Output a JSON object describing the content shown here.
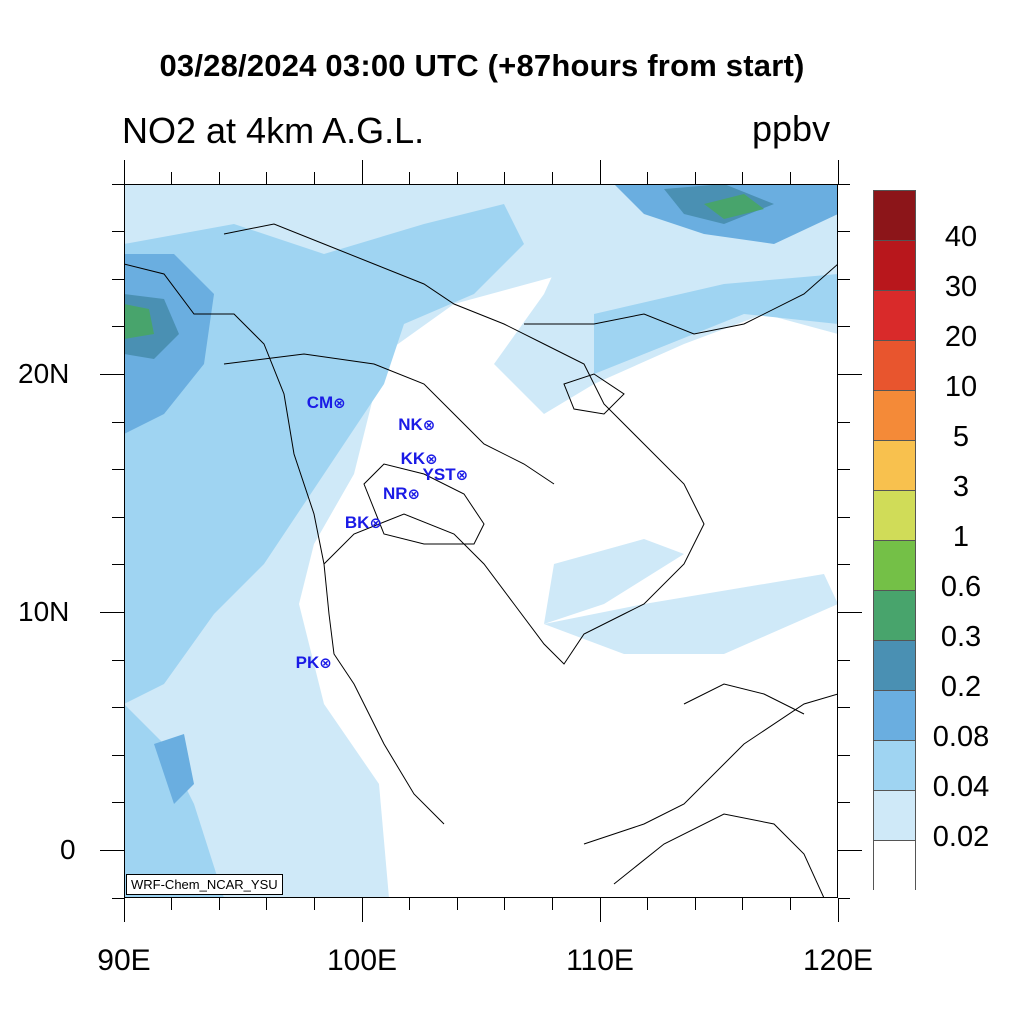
{
  "title": "03/28/2024 03:00 UTC (+87hours from start)",
  "subtitle": "NO2 at 4km A.G.L.",
  "units": "ppbv",
  "credit": "WRF-Chem_NCAR_YSU",
  "axes": {
    "x_labels": [
      "90E",
      "100E",
      "110E",
      "120E"
    ],
    "y_labels": [
      "20N",
      "10N",
      "0"
    ],
    "lon_range": [
      90,
      120
    ],
    "lat_range": [
      -2,
      28
    ]
  },
  "stations": [
    {
      "label": "CM",
      "lon": 98.98,
      "lat": 18.79
    },
    {
      "label": "NK",
      "lon": 102.74,
      "lat": 17.88
    },
    {
      "label": "KK",
      "lon": 102.84,
      "lat": 16.43
    },
    {
      "label": "YST",
      "lon": 104.14,
      "lat": 15.79
    },
    {
      "label": "NR",
      "lon": 102.1,
      "lat": 14.97
    },
    {
      "label": "BK",
      "lon": 100.5,
      "lat": 13.75
    },
    {
      "label": "PK",
      "lon": 98.39,
      "lat": 7.88
    }
  ],
  "station_marker": "⊗",
  "colorbar": {
    "labels": [
      "40",
      "30",
      "20",
      "10",
      "5",
      "3",
      "1",
      "0.6",
      "0.3",
      "0.2",
      "0.08",
      "0.04",
      "0.02"
    ],
    "colors": [
      "#8c1519",
      "#b8171c",
      "#d92a2a",
      "#e8552e",
      "#f48a38",
      "#f8c14e",
      "#d0dc58",
      "#74c047",
      "#48a46c",
      "#4a90b3",
      "#6aaee0",
      "#9fd4f2",
      "#cfe9f8",
      "#ffffff"
    ]
  }
}
